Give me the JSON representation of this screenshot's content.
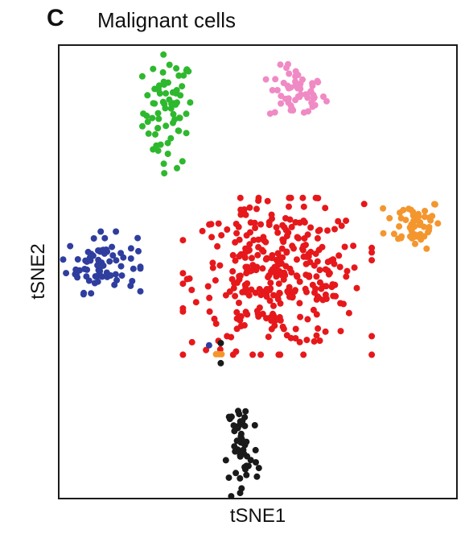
{
  "panel": {
    "letter": "C",
    "title": "Malignant cells"
  },
  "chart_data": {
    "type": "scatter",
    "title": "Malignant cells",
    "xlabel": "tSNE1",
    "ylabel": "tSNE2",
    "xlim": [
      0,
      100
    ],
    "ylim": [
      0,
      100
    ],
    "axes_ticks": false,
    "grid": false,
    "legend": "none",
    "clusters": [
      {
        "color": "#2eb82e",
        "center": [
          27,
          86
        ],
        "spread": [
          3.2,
          6.3
        ],
        "n": 70
      },
      {
        "color": "#f08ac4",
        "center": [
          60,
          90
        ],
        "spread": [
          3.6,
          3.0
        ],
        "n": 55
      },
      {
        "color": "#f4962e",
        "center": [
          90,
          61
        ],
        "spread": [
          3.6,
          2.8
        ],
        "n": 55
      },
      {
        "color": "#2f3e9e",
        "center": [
          10,
          52
        ],
        "spread": [
          4.5,
          3.2
        ],
        "n": 75
      },
      {
        "color": "#e6181b",
        "center": [
          55,
          49
        ],
        "spread": [
          11.0,
          8.0
        ],
        "n": 330
      },
      {
        "color": "#e6181b",
        "center": [
          46,
          63
        ],
        "spread": [
          1.0,
          0.6
        ],
        "n": 6
      },
      {
        "color": "#e6181b",
        "center": [
          62,
          61
        ],
        "spread": [
          0.6,
          0.5
        ],
        "n": 3
      },
      {
        "color": "#1a1a1a",
        "center": [
          46,
          10
        ],
        "spread": [
          2.0,
          6.5
        ],
        "n": 55
      },
      {
        "color": "#2f3e9e",
        "center": [
          37.5,
          33.5
        ],
        "spread": [
          0,
          0
        ],
        "n": 1
      },
      {
        "color": "#f4962e",
        "center": [
          40,
          31.5
        ],
        "spread": [
          0.7,
          0
        ],
        "n": 3
      },
      {
        "color": "#1a1a1a",
        "center": [
          40.5,
          34
        ],
        "spread": [
          0,
          0
        ],
        "n": 1
      },
      {
        "color": "#1a1a1a",
        "center": [
          40.5,
          29.5
        ],
        "spread": [
          0,
          0
        ],
        "n": 1
      }
    ]
  }
}
